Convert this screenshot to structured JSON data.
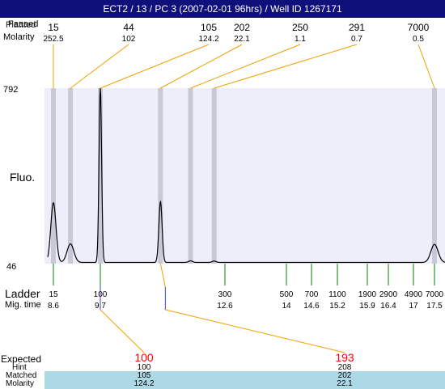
{
  "title": "ECT2 / 13 / PC 3 (2007-02-01 96hrs) / Well ID 1267171",
  "top_labels": {
    "overlap_a": "Faaaed",
    "overlap_b": "Plattted",
    "molarity": "Molarity"
  },
  "y_label": "Fluo.",
  "ladder_label": "Ladder",
  "migtime_label": "Mig. time",
  "expected_labels": {
    "expected": "Expected",
    "hint": "Hint",
    "matched": "Matched",
    "molarity": "Molarity"
  },
  "colors": {
    "title_bg": "#10107a",
    "plot_bg": "#eeeefb",
    "peak_marker": "#c8c8d6",
    "connector": "#f0a000",
    "ladder_tick": "#008000",
    "expected_text": "#ff0000",
    "band": "#add8e6"
  },
  "chart_data": {
    "type": "line",
    "ylim": [
      46,
      792
    ],
    "y_ticks": [
      "792",
      "46"
    ],
    "peaks": [
      {
        "size": "15",
        "molarity": "252.5",
        "time": 8.6,
        "height": 305
      },
      {
        "size": "44",
        "molarity": "102",
        "time": 9.0,
        "height": 130
      },
      {
        "size": "105",
        "molarity": "124.2",
        "time": 9.7,
        "height": 792
      },
      {
        "size": "202",
        "molarity": "22.1",
        "time": 11.1,
        "height": 310
      },
      {
        "size": "250",
        "molarity": "1.1",
        "time": 11.8,
        "height": 58
      },
      {
        "size": "291",
        "molarity": "0.7",
        "time": 12.35,
        "height": 57
      },
      {
        "size": "7000",
        "molarity": "0.5",
        "time": 17.5,
        "height": 128
      }
    ],
    "ladder": [
      {
        "size": "15",
        "time": "8.6"
      },
      {
        "size": "100",
        "time": "9.7"
      },
      {
        "size": "300",
        "time": "12.6"
      },
      {
        "size": "500",
        "time": "14"
      },
      {
        "size": "700",
        "time": "14.6"
      },
      {
        "size": "1100",
        "time": "15.2"
      },
      {
        "size": "1900",
        "time": "15.9"
      },
      {
        "size": "2900",
        "time": "16.4"
      },
      {
        "size": "4900",
        "time": "17"
      },
      {
        "size": "7000",
        "time": "17.5"
      }
    ],
    "expected": [
      {
        "expected": "100",
        "hint": "100",
        "matched": "105",
        "molarity": "124.2"
      },
      {
        "expected": "193",
        "hint": "208",
        "matched": "202",
        "molarity": "22.1"
      }
    ]
  }
}
